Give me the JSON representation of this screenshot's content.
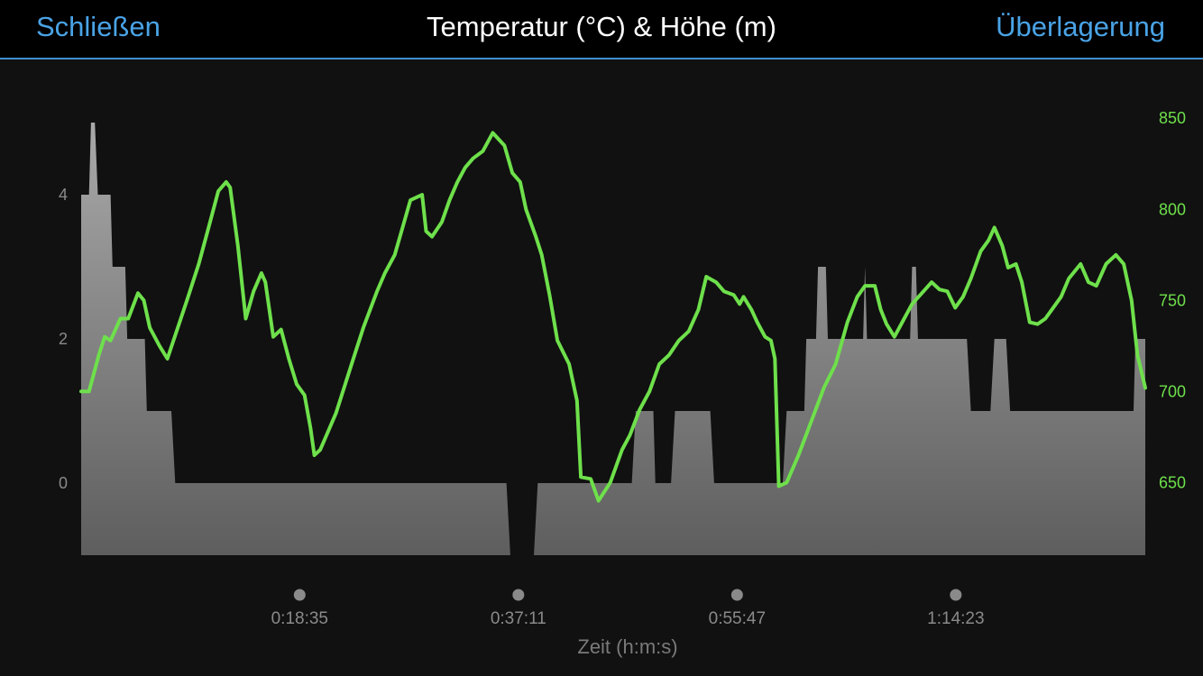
{
  "header": {
    "close_label": "Schließen",
    "title": "Temperatur (°C) & Höhe (m)",
    "overlay_label": "Überlagerung"
  },
  "colors": {
    "accent": "#4aa3e6",
    "temperature_area": "#a0a0a0",
    "altitude_line": "#6ee04b",
    "background": "#111111"
  },
  "chart_data": {
    "type": "area",
    "xlabel": "Zeit (h:m:s)",
    "x_ticks": [
      "0:18:35",
      "0:37:11",
      "0:55:47",
      "1:14:23"
    ],
    "x_tick_seconds": [
      1115,
      2231,
      3347,
      4463
    ],
    "x_range_seconds": [
      0,
      5430
    ],
    "y_left": {
      "ticks": [
        0,
        2,
        4
      ],
      "range": [
        -1,
        5
      ]
    },
    "y_right": {
      "ticks": [
        650,
        700,
        750,
        800,
        850
      ],
      "range": [
        620,
        860
      ]
    },
    "grid": false,
    "series": [
      {
        "axis": "left",
        "style": "area",
        "points": [
          [
            0,
            4
          ],
          [
            40,
            4
          ],
          [
            50,
            5
          ],
          [
            70,
            5
          ],
          [
            85,
            4
          ],
          [
            150,
            4
          ],
          [
            160,
            3
          ],
          [
            225,
            3
          ],
          [
            235,
            2
          ],
          [
            325,
            2
          ],
          [
            335,
            1
          ],
          [
            460,
            1
          ],
          [
            480,
            0
          ],
          [
            2170,
            0
          ],
          [
            2190,
            -1
          ],
          [
            2310,
            -1
          ],
          [
            2330,
            0
          ],
          [
            2810,
            0
          ],
          [
            2830,
            1
          ],
          [
            2920,
            1
          ],
          [
            2930,
            0
          ],
          [
            3010,
            0
          ],
          [
            3030,
            1
          ],
          [
            3210,
            1
          ],
          [
            3230,
            0
          ],
          [
            3580,
            0
          ],
          [
            3600,
            1
          ],
          [
            3690,
            1
          ],
          [
            3700,
            2
          ],
          [
            3750,
            2
          ],
          [
            3760,
            3
          ],
          [
            3800,
            3
          ],
          [
            3810,
            2
          ],
          [
            3990,
            2
          ],
          [
            4000,
            3
          ],
          [
            4010,
            2
          ],
          [
            4230,
            2
          ],
          [
            4240,
            3
          ],
          [
            4260,
            3
          ],
          [
            4270,
            2
          ],
          [
            4520,
            2
          ],
          [
            4540,
            1
          ],
          [
            4640,
            1
          ],
          [
            4660,
            2
          ],
          [
            4720,
            2
          ],
          [
            4740,
            1
          ],
          [
            5370,
            1
          ],
          [
            5380,
            2
          ],
          [
            5430,
            2
          ]
        ]
      },
      {
        "axis": "right",
        "style": "line",
        "points": [
          [
            0,
            700
          ],
          [
            40,
            700
          ],
          [
            90,
            720
          ],
          [
            120,
            730
          ],
          [
            150,
            728
          ],
          [
            200,
            740
          ],
          [
            240,
            740
          ],
          [
            290,
            754
          ],
          [
            320,
            750
          ],
          [
            350,
            735
          ],
          [
            400,
            725
          ],
          [
            440,
            718
          ],
          [
            540,
            750
          ],
          [
            600,
            770
          ],
          [
            650,
            790
          ],
          [
            700,
            810
          ],
          [
            740,
            815
          ],
          [
            760,
            812
          ],
          [
            800,
            780
          ],
          [
            840,
            740
          ],
          [
            880,
            755
          ],
          [
            920,
            765
          ],
          [
            940,
            760
          ],
          [
            980,
            730
          ],
          [
            1020,
            734
          ],
          [
            1060,
            718
          ],
          [
            1100,
            704
          ],
          [
            1140,
            698
          ],
          [
            1170,
            680
          ],
          [
            1190,
            665
          ],
          [
            1220,
            668
          ],
          [
            1300,
            688
          ],
          [
            1380,
            715
          ],
          [
            1440,
            735
          ],
          [
            1510,
            755
          ],
          [
            1550,
            765
          ],
          [
            1600,
            775
          ],
          [
            1640,
            790
          ],
          [
            1680,
            805
          ],
          [
            1740,
            808
          ],
          [
            1760,
            788
          ],
          [
            1790,
            785
          ],
          [
            1840,
            793
          ],
          [
            1880,
            805
          ],
          [
            1920,
            815
          ],
          [
            1960,
            823
          ],
          [
            2000,
            828
          ],
          [
            2050,
            832
          ],
          [
            2100,
            842
          ],
          [
            2160,
            835
          ],
          [
            2200,
            820
          ],
          [
            2240,
            815
          ],
          [
            2270,
            800
          ],
          [
            2320,
            785
          ],
          [
            2350,
            775
          ],
          [
            2390,
            753
          ],
          [
            2430,
            728
          ],
          [
            2490,
            715
          ],
          [
            2530,
            695
          ],
          [
            2550,
            653
          ],
          [
            2600,
            652
          ],
          [
            2640,
            640
          ],
          [
            2700,
            650
          ],
          [
            2760,
            668
          ],
          [
            2800,
            676
          ],
          [
            2850,
            690
          ],
          [
            2900,
            700
          ],
          [
            2950,
            715
          ],
          [
            3000,
            720
          ],
          [
            3050,
            728
          ],
          [
            3100,
            733
          ],
          [
            3150,
            745
          ],
          [
            3190,
            763
          ],
          [
            3240,
            760
          ],
          [
            3280,
            755
          ],
          [
            3330,
            753
          ],
          [
            3360,
            748
          ],
          [
            3380,
            752
          ],
          [
            3420,
            745
          ],
          [
            3450,
            738
          ],
          [
            3490,
            730
          ],
          [
            3520,
            728
          ],
          [
            3540,
            718
          ],
          [
            3560,
            648
          ],
          [
            3600,
            650
          ],
          [
            3660,
            665
          ],
          [
            3720,
            682
          ],
          [
            3790,
            702
          ],
          [
            3850,
            715
          ],
          [
            3910,
            738
          ],
          [
            3960,
            752
          ],
          [
            4000,
            758
          ],
          [
            4050,
            758
          ],
          [
            4080,
            745
          ],
          [
            4110,
            737
          ],
          [
            4150,
            730
          ],
          [
            4190,
            738
          ],
          [
            4240,
            748
          ],
          [
            4290,
            754
          ],
          [
            4340,
            760
          ],
          [
            4380,
            756
          ],
          [
            4420,
            755
          ],
          [
            4460,
            746
          ],
          [
            4500,
            752
          ],
          [
            4540,
            762
          ],
          [
            4590,
            777
          ],
          [
            4630,
            783
          ],
          [
            4660,
            790
          ],
          [
            4700,
            780
          ],
          [
            4730,
            768
          ],
          [
            4770,
            770
          ],
          [
            4800,
            760
          ],
          [
            4840,
            738
          ],
          [
            4880,
            737
          ],
          [
            4920,
            740
          ],
          [
            4960,
            746
          ],
          [
            5000,
            752
          ],
          [
            5040,
            762
          ],
          [
            5100,
            770
          ],
          [
            5140,
            760
          ],
          [
            5180,
            758
          ],
          [
            5230,
            770
          ],
          [
            5280,
            775
          ],
          [
            5320,
            770
          ],
          [
            5360,
            750
          ],
          [
            5390,
            720
          ],
          [
            5430,
            702
          ]
        ]
      }
    ]
  }
}
